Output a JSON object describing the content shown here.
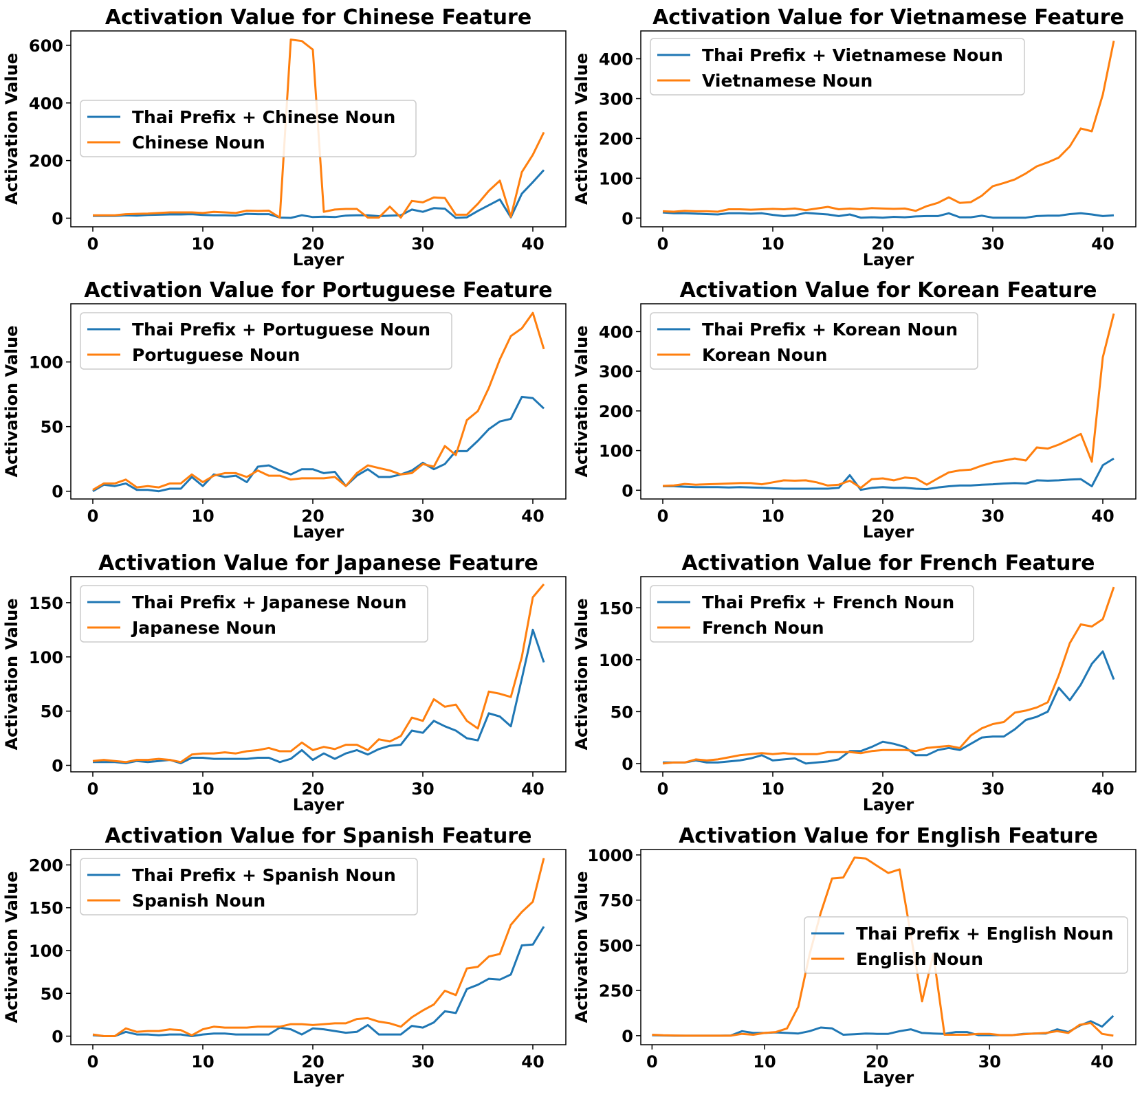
{
  "colors": {
    "thai": "#1f77b4",
    "native": "#ff7f0e"
  },
  "chart_data": [
    {
      "type": "line",
      "title": "Activation Value for Chinese Feature",
      "xlabel": "Layer",
      "ylabel": "Activation Value",
      "xlim": [
        -2,
        43
      ],
      "ylim": [
        -30,
        650
      ],
      "xticks": [
        0,
        10,
        20,
        30,
        40
      ],
      "yticks": [
        0,
        200,
        400,
        600
      ],
      "legend_position": "center-left",
      "series": [
        {
          "name": "Thai Prefix + Chinese Noun",
          "color_key": "thai",
          "values": [
            8,
            8,
            8,
            10,
            9,
            11,
            12,
            13,
            13,
            14,
            11,
            10,
            10,
            9,
            15,
            14,
            14,
            2,
            1,
            10,
            4,
            5,
            4,
            9,
            10,
            10,
            7,
            9,
            10,
            30,
            22,
            35,
            33,
            1,
            3,
            25,
            45,
            65,
            3,
            85,
            125,
            167
          ]
        },
        {
          "name": "Chinese Noun",
          "color_key": "native",
          "values": [
            10,
            10,
            10,
            14,
            15,
            16,
            18,
            20,
            20,
            20,
            18,
            22,
            20,
            18,
            26,
            25,
            26,
            2,
            620,
            615,
            585,
            22,
            30,
            32,
            32,
            2,
            2,
            40,
            2,
            60,
            55,
            72,
            70,
            12,
            12,
            50,
            95,
            130,
            5,
            160,
            220,
            298
          ]
        }
      ]
    },
    {
      "type": "line",
      "title": "Activation Value for Vietnamese Feature",
      "xlabel": "Layer",
      "ylabel": "Activation Value",
      "xlim": [
        -2,
        43
      ],
      "ylim": [
        -22,
        470
      ],
      "xticks": [
        0,
        10,
        20,
        30,
        40
      ],
      "yticks": [
        0,
        100,
        200,
        300,
        400
      ],
      "legend_position": "top-left",
      "series": [
        {
          "name": "Thai Prefix + Vietnamese Noun",
          "color_key": "thai",
          "values": [
            14,
            12,
            12,
            11,
            10,
            9,
            12,
            12,
            11,
            12,
            8,
            5,
            7,
            13,
            11,
            9,
            5,
            9,
            1,
            2,
            1,
            3,
            2,
            4,
            5,
            5,
            12,
            2,
            2,
            6,
            1,
            1,
            1,
            1,
            5,
            6,
            6,
            10,
            12,
            9,
            5,
            7
          ]
        },
        {
          "name": "Vietnamese Noun",
          "color_key": "native",
          "values": [
            17,
            16,
            18,
            17,
            17,
            16,
            22,
            22,
            21,
            22,
            23,
            22,
            24,
            20,
            24,
            28,
            22,
            24,
            22,
            25,
            24,
            23,
            24,
            18,
            30,
            38,
            52,
            38,
            40,
            56,
            80,
            88,
            97,
            112,
            130,
            140,
            152,
            180,
            225,
            218,
            310,
            445
          ]
        }
      ]
    },
    {
      "type": "line",
      "title": "Activation Value for Portuguese Feature",
      "xlabel": "Layer",
      "ylabel": "Activation Value",
      "xlim": [
        -2,
        43
      ],
      "ylim": [
        -6,
        145
      ],
      "xticks": [
        0,
        10,
        20,
        30,
        40
      ],
      "yticks": [
        0,
        50,
        100
      ],
      "legend_position": "top-left",
      "series": [
        {
          "name": "Thai Prefix + Portuguese Noun",
          "color_key": "thai",
          "values": [
            0,
            5,
            4,
            6,
            1,
            1,
            0,
            2,
            2,
            11,
            4,
            13,
            11,
            12,
            7,
            19,
            20,
            16,
            13,
            17,
            17,
            14,
            15,
            4,
            12,
            17,
            11,
            11,
            13,
            16,
            22,
            17,
            21,
            31,
            31,
            39,
            48,
            54,
            56,
            73,
            72,
            64
          ]
        },
        {
          "name": "Portuguese Noun",
          "color_key": "native",
          "values": [
            1,
            6,
            6,
            9,
            3,
            4,
            3,
            6,
            6,
            13,
            7,
            12,
            14,
            14,
            11,
            16,
            12,
            12,
            9,
            10,
            10,
            10,
            11,
            4,
            14,
            20,
            18,
            16,
            13,
            14,
            21,
            19,
            35,
            28,
            55,
            62,
            80,
            102,
            120,
            126,
            138,
            110
          ]
        }
      ]
    },
    {
      "type": "line",
      "title": "Activation Value for Korean Feature",
      "xlabel": "Layer",
      "ylabel": "Activation Value",
      "xlim": [
        -2,
        43
      ],
      "ylim": [
        -22,
        470
      ],
      "xticks": [
        0,
        10,
        20,
        30,
        40
      ],
      "yticks": [
        0,
        100,
        200,
        300,
        400
      ],
      "legend_position": "top-left",
      "series": [
        {
          "name": "Thai Prefix + Korean Noun",
          "color_key": "thai",
          "values": [
            10,
            10,
            9,
            8,
            8,
            8,
            7,
            8,
            7,
            6,
            5,
            4,
            4,
            4,
            4,
            4,
            6,
            38,
            1,
            6,
            8,
            6,
            6,
            4,
            3,
            7,
            10,
            12,
            12,
            14,
            15,
            17,
            18,
            17,
            25,
            24,
            25,
            27,
            28,
            10,
            63,
            80
          ]
        },
        {
          "name": "Korean Noun",
          "color_key": "native",
          "values": [
            11,
            12,
            16,
            14,
            15,
            16,
            17,
            18,
            18,
            15,
            20,
            25,
            24,
            25,
            20,
            12,
            14,
            24,
            6,
            28,
            30,
            25,
            32,
            30,
            14,
            30,
            45,
            50,
            52,
            62,
            70,
            75,
            80,
            75,
            108,
            105,
            115,
            128,
            142,
            72,
            335,
            445
          ]
        }
      ]
    },
    {
      "type": "line",
      "title": "Activation Value for Japanese Feature",
      "xlabel": "Layer",
      "ylabel": "Activation Value",
      "xlim": [
        -2,
        43
      ],
      "ylim": [
        -6,
        174
      ],
      "xticks": [
        0,
        10,
        20,
        30,
        40
      ],
      "yticks": [
        0,
        50,
        100,
        150
      ],
      "legend_position": "top-left",
      "series": [
        {
          "name": "Thai Prefix + Japanese Noun",
          "color_key": "thai",
          "values": [
            3,
            3,
            3,
            2,
            4,
            3,
            4,
            5,
            2,
            7,
            7,
            6,
            6,
            6,
            6,
            7,
            7,
            3,
            6,
            14,
            5,
            11,
            6,
            11,
            14,
            10,
            15,
            18,
            19,
            32,
            30,
            41,
            36,
            32,
            25,
            23,
            48,
            45,
            36,
            80,
            125,
            95
          ]
        },
        {
          "name": "Japanese Noun",
          "color_key": "native",
          "values": [
            4,
            5,
            4,
            3,
            5,
            5,
            6,
            5,
            3,
            10,
            11,
            11,
            12,
            11,
            13,
            14,
            16,
            13,
            13,
            21,
            14,
            17,
            15,
            19,
            19,
            14,
            24,
            22,
            27,
            44,
            41,
            61,
            54,
            56,
            41,
            34,
            68,
            66,
            63,
            100,
            155,
            167
          ]
        }
      ]
    },
    {
      "type": "line",
      "title": "Activation Value for French Feature",
      "xlabel": "Layer",
      "ylabel": "Activation Value",
      "xlim": [
        -2,
        43
      ],
      "ylim": [
        -8,
        180
      ],
      "xticks": [
        0,
        10,
        20,
        30,
        40
      ],
      "yticks": [
        0,
        50,
        100,
        150
      ],
      "legend_position": "top-left",
      "series": [
        {
          "name": "Thai Prefix + French Noun",
          "color_key": "thai",
          "values": [
            1,
            1,
            1,
            3,
            1,
            1,
            2,
            3,
            5,
            8,
            3,
            4,
            5,
            0,
            1,
            2,
            4,
            12,
            12,
            16,
            21,
            19,
            16,
            8,
            8,
            13,
            15,
            13,
            19,
            25,
            26,
            26,
            33,
            42,
            45,
            50,
            73,
            61,
            76,
            96,
            108,
            81
          ]
        },
        {
          "name": "French Noun",
          "color_key": "native",
          "values": [
            0,
            1,
            1,
            4,
            3,
            4,
            6,
            8,
            9,
            10,
            9,
            10,
            9,
            9,
            9,
            11,
            11,
            11,
            10,
            12,
            13,
            13,
            13,
            12,
            15,
            16,
            17,
            15,
            27,
            34,
            38,
            40,
            49,
            51,
            54,
            59,
            85,
            116,
            134,
            132,
            139,
            170
          ]
        }
      ]
    },
    {
      "type": "line",
      "title": "Activation Value for Spanish Feature",
      "xlabel": "Layer",
      "ylabel": "Activation Value",
      "xlim": [
        -2,
        43
      ],
      "ylim": [
        -10,
        218
      ],
      "xticks": [
        0,
        10,
        20,
        30,
        40
      ],
      "yticks": [
        0,
        50,
        100,
        150,
        200
      ],
      "legend_position": "top-left",
      "series": [
        {
          "name": "Thai Prefix + Spanish Noun",
          "color_key": "thai",
          "values": [
            1,
            0,
            0,
            5,
            2,
            2,
            1,
            2,
            2,
            0,
            2,
            3,
            3,
            2,
            2,
            2,
            2,
            10,
            8,
            2,
            9,
            8,
            6,
            4,
            5,
            13,
            2,
            2,
            2,
            12,
            10,
            16,
            29,
            27,
            55,
            60,
            67,
            66,
            72,
            106,
            107,
            128
          ]
        },
        {
          "name": "Spanish Noun",
          "color_key": "native",
          "values": [
            2,
            0,
            0,
            9,
            5,
            6,
            6,
            8,
            7,
            1,
            8,
            11,
            10,
            10,
            10,
            11,
            11,
            11,
            14,
            14,
            13,
            14,
            15,
            15,
            20,
            21,
            17,
            15,
            11,
            22,
            30,
            37,
            53,
            48,
            79,
            81,
            93,
            96,
            130,
            145,
            157,
            208
          ]
        }
      ]
    },
    {
      "type": "line",
      "title": "Activation Value for English Feature",
      "xlabel": "Layer",
      "ylabel": "Activation Value",
      "xlim": [
        -1,
        43
      ],
      "ylim": [
        -50,
        1030
      ],
      "xticks": [
        0,
        10,
        20,
        30,
        40
      ],
      "yticks": [
        0,
        250,
        500,
        750,
        1000
      ],
      "legend_position": "center-right",
      "series": [
        {
          "name": "Thai Prefix + English Noun",
          "color_key": "thai",
          "values": [
            2,
            1,
            0,
            0,
            0,
            0,
            0,
            1,
            25,
            15,
            15,
            18,
            15,
            12,
            25,
            45,
            40,
            5,
            8,
            12,
            10,
            10,
            25,
            35,
            15,
            12,
            10,
            20,
            20,
            3,
            3,
            3,
            3,
            10,
            12,
            12,
            35,
            20,
            55,
            80,
            50,
            110
          ]
        },
        {
          "name": "English Noun",
          "color_key": "native",
          "values": [
            5,
            2,
            1,
            0,
            0,
            0,
            0,
            0,
            10,
            5,
            15,
            20,
            40,
            160,
            450,
            680,
            870,
            875,
            985,
            980,
            940,
            900,
            920,
            560,
            190,
            450,
            5,
            5,
            5,
            10,
            10,
            3,
            3,
            8,
            12,
            15,
            25,
            15,
            60,
            70,
            10,
            0
          ]
        }
      ]
    }
  ]
}
